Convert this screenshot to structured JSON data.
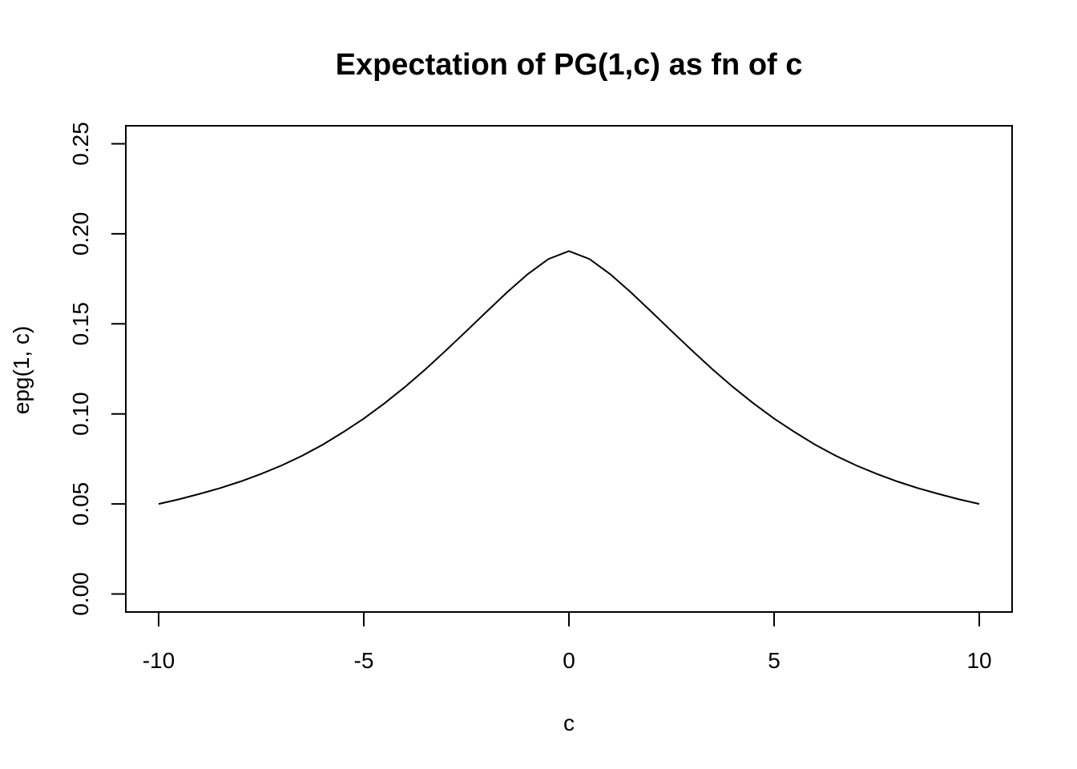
{
  "chart_data": {
    "type": "line",
    "title": "Expectation of PG(1,c) as fn of c",
    "xlabel": "c",
    "ylabel": "epg(1, c)",
    "xlim": [
      -10.8,
      10.8
    ],
    "ylim": [
      -0.01,
      0.26
    ],
    "x_ticks": [
      -10,
      -5,
      0,
      5,
      10
    ],
    "x_tick_labels": [
      "-10",
      "-5",
      "0",
      "5",
      "10"
    ],
    "y_ticks": [
      0.0,
      0.05,
      0.1,
      0.15,
      0.2,
      0.25
    ],
    "y_tick_labels": [
      "0.00",
      "0.05",
      "0.10",
      "0.15",
      "0.20",
      "0.25"
    ],
    "grid": false,
    "legend": "none",
    "series": [
      {
        "x": [
          -10,
          -9.5,
          -9,
          -8.5,
          -8,
          -7.5,
          -7,
          -6.5,
          -6,
          -5.5,
          -5,
          -4.5,
          -4,
          -3.5,
          -3,
          -2.5,
          -2,
          -1.5,
          -1,
          -0.5,
          0,
          0.5,
          1,
          1.5,
          2,
          2.5,
          3,
          3.5,
          4,
          4.5,
          5,
          5.5,
          6,
          6.5,
          7,
          7.5,
          8,
          8.5,
          9,
          9.5,
          10
        ],
        "y": [
          0.05,
          0.0526,
          0.0556,
          0.0588,
          0.0625,
          0.0667,
          0.0714,
          0.0768,
          0.0829,
          0.0899,
          0.0974,
          0.1058,
          0.1149,
          0.1247,
          0.1352,
          0.146,
          0.1569,
          0.1677,
          0.1777,
          0.186,
          0.1904,
          0.186,
          0.1777,
          0.1677,
          0.1569,
          0.146,
          0.1352,
          0.1247,
          0.1149,
          0.1058,
          0.0974,
          0.0899,
          0.0829,
          0.0768,
          0.0714,
          0.0667,
          0.0625,
          0.0588,
          0.0556,
          0.0526,
          0.05
        ]
      }
    ]
  }
}
